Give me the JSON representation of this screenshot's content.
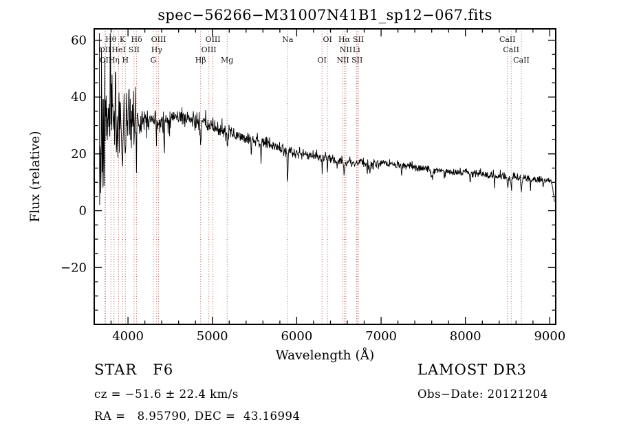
{
  "title": "spec−56266−M31007N41B1_sp12−067.fits",
  "footer": {
    "class_line": "STAR   F6",
    "cz_line": "cz = −51.6 ± 22.4 km/s",
    "radec_line": "RA =   8.95790, DEC =  43.16994",
    "survey": "LAMOST DR3",
    "obs_date_line": "Obs−Date: 20121204"
  },
  "colors": {
    "spectrum": "#000000",
    "line_marker": "#ad5a52",
    "marker_label": "#151515",
    "axis": "#000000"
  },
  "chart_data": {
    "type": "line",
    "title": "spec−56266−M31007N41B1_sp12−067.fits",
    "xlabel": "Wavelength (Å)",
    "ylabel": "Flux (relative)",
    "xlim": [
      3600,
      9070
    ],
    "ylim": [
      -40,
      64
    ],
    "x_ticks": [
      4000,
      5000,
      6000,
      7000,
      8000,
      9000
    ],
    "y_ticks": [
      -20,
      0,
      20,
      40,
      60
    ],
    "x_minor_step": 200,
    "y_minor_step": 5,
    "grid": false,
    "legend": "none",
    "line_markers": [
      {
        "label": "Hθ",
        "wavelength": 3798,
        "row": 1
      },
      {
        "label": "K",
        "wavelength": 3934,
        "row": 1
      },
      {
        "label": "Hδ",
        "wavelength": 4102,
        "row": 1
      },
      {
        "label": "OIII",
        "wavelength": 4363,
        "row": 1
      },
      {
        "label": "OIII",
        "wavelength": 5007,
        "row": 1
      },
      {
        "label": "Na",
        "wavelength": 5893,
        "row": 1
      },
      {
        "label": "OI",
        "wavelength": 6365,
        "row": 1
      },
      {
        "label": "Hα",
        "wavelength": 6563,
        "row": 1
      },
      {
        "label": "SII",
        "wavelength": 6731,
        "row": 1
      },
      {
        "label": "CaII",
        "wavelength": 8498,
        "row": 1
      },
      {
        "label": "OII",
        "wavelength": 3727,
        "row": 2
      },
      {
        "label": "HeI",
        "wavelength": 3889,
        "row": 2
      },
      {
        "label": "SII",
        "wavelength": 4072,
        "row": 2
      },
      {
        "label": "Hγ",
        "wavelength": 4340,
        "row": 2
      },
      {
        "label": "OIII",
        "wavelength": 4959,
        "row": 2
      },
      {
        "label": "NII",
        "wavelength": 6583,
        "row": 2
      },
      {
        "label": "Li",
        "wavelength": 6708,
        "row": 2
      },
      {
        "label": "CaII",
        "wavelength": 8542,
        "row": 2
      },
      {
        "label": "OII",
        "wavelength": 3734,
        "row": 3
      },
      {
        "label": "Hη",
        "wavelength": 3835,
        "row": 3
      },
      {
        "label": "H",
        "wavelength": 3969,
        "row": 3
      },
      {
        "label": "G",
        "wavelength": 4300,
        "row": 3
      },
      {
        "label": "Hβ",
        "wavelength": 4861,
        "row": 3
      },
      {
        "label": "Mg",
        "wavelength": 5175,
        "row": 3
      },
      {
        "label": "OI",
        "wavelength": 6300,
        "row": 3
      },
      {
        "label": "NII",
        "wavelength": 6548,
        "row": 3
      },
      {
        "label": "SII",
        "wavelength": 6716,
        "row": 3
      },
      {
        "label": "CaII",
        "wavelength": 8662,
        "row": 3
      }
    ],
    "spectrum": {
      "lambda_start": 3660,
      "lambda_end": 9056,
      "samples": 1250,
      "seed": 7,
      "continuum": [
        [
          3660,
          20
        ],
        [
          3700,
          25
        ],
        [
          3740,
          29
        ],
        [
          3780,
          32
        ],
        [
          3830,
          32
        ],
        [
          3880,
          31
        ],
        [
          3930,
          33
        ],
        [
          3980,
          35
        ],
        [
          4030,
          33
        ],
        [
          4080,
          31
        ],
        [
          4150,
          32
        ],
        [
          4250,
          33
        ],
        [
          4350,
          32
        ],
        [
          4450,
          31.5
        ],
        [
          4550,
          33
        ],
        [
          4650,
          33
        ],
        [
          4750,
          32
        ],
        [
          4850,
          31
        ],
        [
          4950,
          30
        ],
        [
          5050,
          29
        ],
        [
          5150,
          28
        ],
        [
          5250,
          27
        ],
        [
          5350,
          26
        ],
        [
          5450,
          25.5
        ],
        [
          5550,
          24.5
        ],
        [
          5650,
          23.5
        ],
        [
          5750,
          22.5
        ],
        [
          5850,
          21.5
        ],
        [
          5950,
          20.5
        ],
        [
          6050,
          20
        ],
        [
          6150,
          19.5
        ],
        [
          6250,
          19
        ],
        [
          6350,
          18.5
        ],
        [
          6450,
          18
        ],
        [
          6550,
          17.5
        ],
        [
          6650,
          17
        ],
        [
          6800,
          16.8
        ],
        [
          7000,
          16.5
        ],
        [
          7200,
          16
        ],
        [
          7400,
          15.3
        ],
        [
          7600,
          14.6
        ],
        [
          7800,
          14
        ],
        [
          8000,
          13.4
        ],
        [
          8200,
          12.8
        ],
        [
          8400,
          12.3
        ],
        [
          8600,
          11.8
        ],
        [
          8800,
          11.2
        ],
        [
          8950,
          10.8
        ],
        [
          9020,
          10.5
        ],
        [
          9045,
          6
        ],
        [
          9056,
          2
        ]
      ],
      "noise_segments": [
        [
          3660,
          3725,
          22
        ],
        [
          3725,
          3900,
          8
        ],
        [
          3900,
          4150,
          5
        ],
        [
          4150,
          4500,
          2.3
        ],
        [
          4500,
          5200,
          1.6
        ],
        [
          5200,
          6000,
          1.1
        ],
        [
          6000,
          7000,
          0.85
        ],
        [
          7000,
          9056,
          0.7
        ]
      ],
      "absorption": [
        [
          3934,
          14,
          7
        ],
        [
          3969,
          11,
          7
        ],
        [
          4102,
          9,
          6
        ],
        [
          4340,
          8,
          6
        ],
        [
          4861,
          7,
          6
        ],
        [
          5175,
          3,
          9
        ],
        [
          5893,
          7,
          5
        ],
        [
          6563,
          5,
          5
        ],
        [
          6867,
          2.5,
          10
        ],
        [
          7605,
          3,
          14
        ],
        [
          8498,
          3,
          7
        ],
        [
          8542,
          4,
          7
        ],
        [
          8662,
          3.5,
          7
        ]
      ],
      "spikes": [
        [
          4430,
          9
        ],
        [
          5461,
          5
        ],
        [
          5577,
          7
        ],
        [
          5890,
          6
        ],
        [
          6302,
          5
        ],
        [
          6364,
          6
        ],
        [
          6835,
          4
        ],
        [
          7246,
          4
        ],
        [
          7750,
          4
        ],
        [
          8057,
          5
        ],
        [
          8344,
          4
        ],
        [
          8770,
          4
        ],
        [
          8920,
          3
        ]
      ]
    }
  }
}
